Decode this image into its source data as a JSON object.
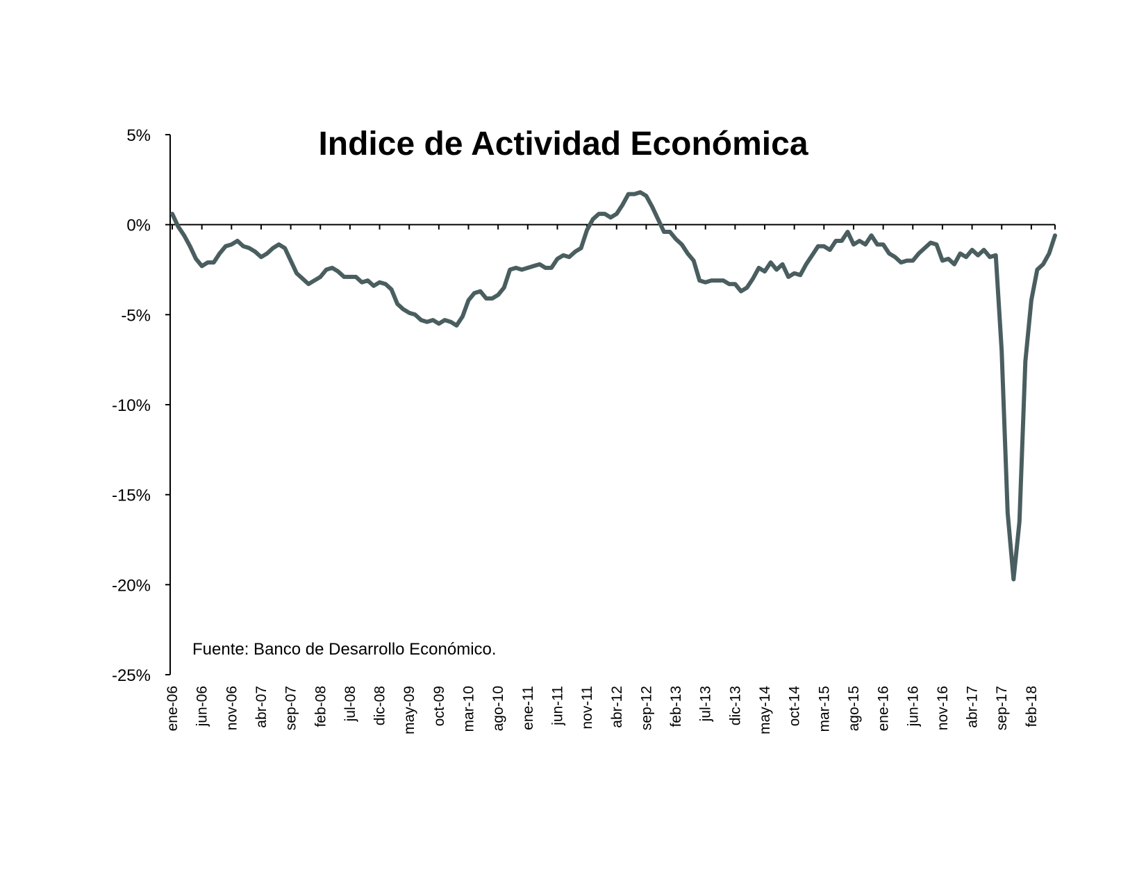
{
  "chart_data": {
    "type": "line",
    "title": "Indice de Actividad Económica",
    "source_note": "Fuente: Banco de Desarrollo Económico.",
    "xlabel": "",
    "ylabel": "",
    "ylim": [
      -25,
      5
    ],
    "yticks": [
      5,
      0,
      -5,
      -10,
      -15,
      -20,
      -25
    ],
    "ytick_labels": [
      "5%",
      "0%",
      "-5%",
      "-10%",
      "-15%",
      "-20%",
      "-25%"
    ],
    "x_tick_labels": [
      "ene-06",
      "jun-06",
      "nov-06",
      "abr-07",
      "sep-07",
      "feb-08",
      "jul-08",
      "dic-08",
      "may-09",
      "oct-09",
      "mar-10",
      "ago-10",
      "ene-11",
      "jun-11",
      "nov-11",
      "abr-12",
      "sep-12",
      "feb-13",
      "jul-13",
      "dic-13",
      "may-14",
      "oct-14",
      "mar-15",
      "ago-15",
      "ene-16",
      "jun-16",
      "nov-16",
      "abr-17",
      "sep-17",
      "feb-18"
    ],
    "x_tick_every_months": 5,
    "x_start": "ene-06",
    "x_end": "sep-18",
    "grid": false,
    "legend": "none",
    "color": "#4a5e60",
    "series": [
      {
        "values": [
          0.6,
          -0.1,
          -0.6,
          -1.2,
          -1.9,
          -2.3,
          -2.1,
          -2.1,
          -1.6,
          -1.2,
          -1.1,
          -0.9,
          -1.2,
          -1.3,
          -1.5,
          -1.8,
          -1.6,
          -1.3,
          -1.1,
          -1.3,
          -2.0,
          -2.7,
          -3.0,
          -3.3,
          -3.1,
          -2.9,
          -2.5,
          -2.4,
          -2.6,
          -2.9,
          -2.9,
          -2.9,
          -3.2,
          -3.1,
          -3.4,
          -3.2,
          -3.3,
          -3.6,
          -4.4,
          -4.7,
          -4.9,
          -5.0,
          -5.3,
          -5.4,
          -5.3,
          -5.5,
          -5.3,
          -5.4,
          -5.6,
          -5.1,
          -4.2,
          -3.8,
          -3.7,
          -4.1,
          -4.1,
          -3.9,
          -3.5,
          -2.5,
          -2.4,
          -2.5,
          -2.4,
          -2.3,
          -2.2,
          -2.4,
          -2.4,
          -1.9,
          -1.7,
          -1.8,
          -1.5,
          -1.3,
          -0.3,
          0.3,
          0.6,
          0.6,
          0.4,
          0.6,
          1.1,
          1.7,
          1.7,
          1.8,
          1.6,
          1.0,
          0.3,
          -0.4,
          -0.4,
          -0.8,
          -1.1,
          -1.6,
          -2.0,
          -3.1,
          -3.2,
          -3.1,
          -3.1,
          -3.1,
          -3.3,
          -3.3,
          -3.7,
          -3.5,
          -3.0,
          -2.4,
          -2.6,
          -2.1,
          -2.5,
          -2.2,
          -2.9,
          -2.7,
          -2.8,
          -2.2,
          -1.7,
          -1.2,
          -1.2,
          -1.4,
          -0.9,
          -0.9,
          -0.4,
          -1.1,
          -0.9,
          -1.1,
          -0.6,
          -1.1,
          -1.1,
          -1.6,
          -1.8,
          -2.1,
          -2.0,
          -2.0,
          -1.6,
          -1.3,
          -1.0,
          -1.1,
          -2.0,
          -1.9,
          -2.2,
          -1.6,
          -1.8,
          -1.4,
          -1.7,
          -1.4,
          -1.8,
          -1.7,
          -7.0,
          -16.0,
          -19.7,
          -16.5,
          -7.6,
          -4.2,
          -2.5,
          -2.2,
          -1.6,
          -0.6
        ]
      }
    ]
  }
}
